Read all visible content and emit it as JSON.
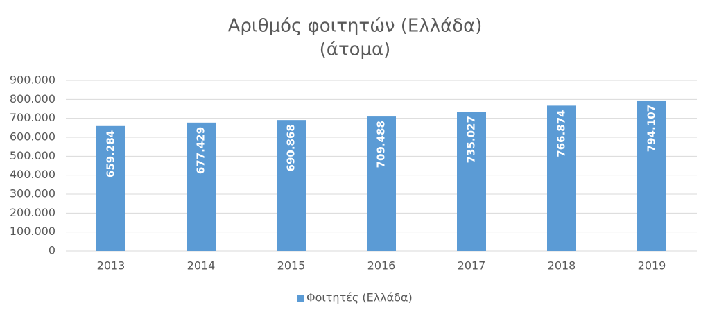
{
  "chart_data": {
    "type": "bar",
    "title": [
      "Αριθμός φοιτητών (Ελλάδα)",
      "(άτομα)"
    ],
    "categories": [
      "2013",
      "2014",
      "2015",
      "2016",
      "2017",
      "2018",
      "2019"
    ],
    "series": [
      {
        "name": "Φοιτητές (Ελλάδα)",
        "color": "#5b9bd5",
        "values": [
          659284,
          677429,
          690868,
          709488,
          735027,
          766874,
          794107
        ],
        "value_labels": [
          "659.284",
          "677.429",
          "690.868",
          "709.488",
          "735.027",
          "766.874",
          "794.107"
        ]
      }
    ],
    "ylim": [
      0,
      900000
    ],
    "yticks": [
      0,
      {
        "value": 100000,
        "label": "100.000"
      },
      {
        "value": 200000,
        "label": "200.000"
      },
      {
        "value": 300000,
        "label": "300.000"
      },
      {
        "value": 400000,
        "label": "400.000"
      },
      {
        "value": 500000,
        "label": "500.000"
      },
      {
        "value": 600000,
        "label": "600.000"
      },
      {
        "value": 700000,
        "label": "700.000"
      },
      {
        "value": 800000,
        "label": "800.000"
      },
      {
        "value": 900000,
        "label": "900.000"
      }
    ],
    "grid": true,
    "legend": "bottom"
  }
}
